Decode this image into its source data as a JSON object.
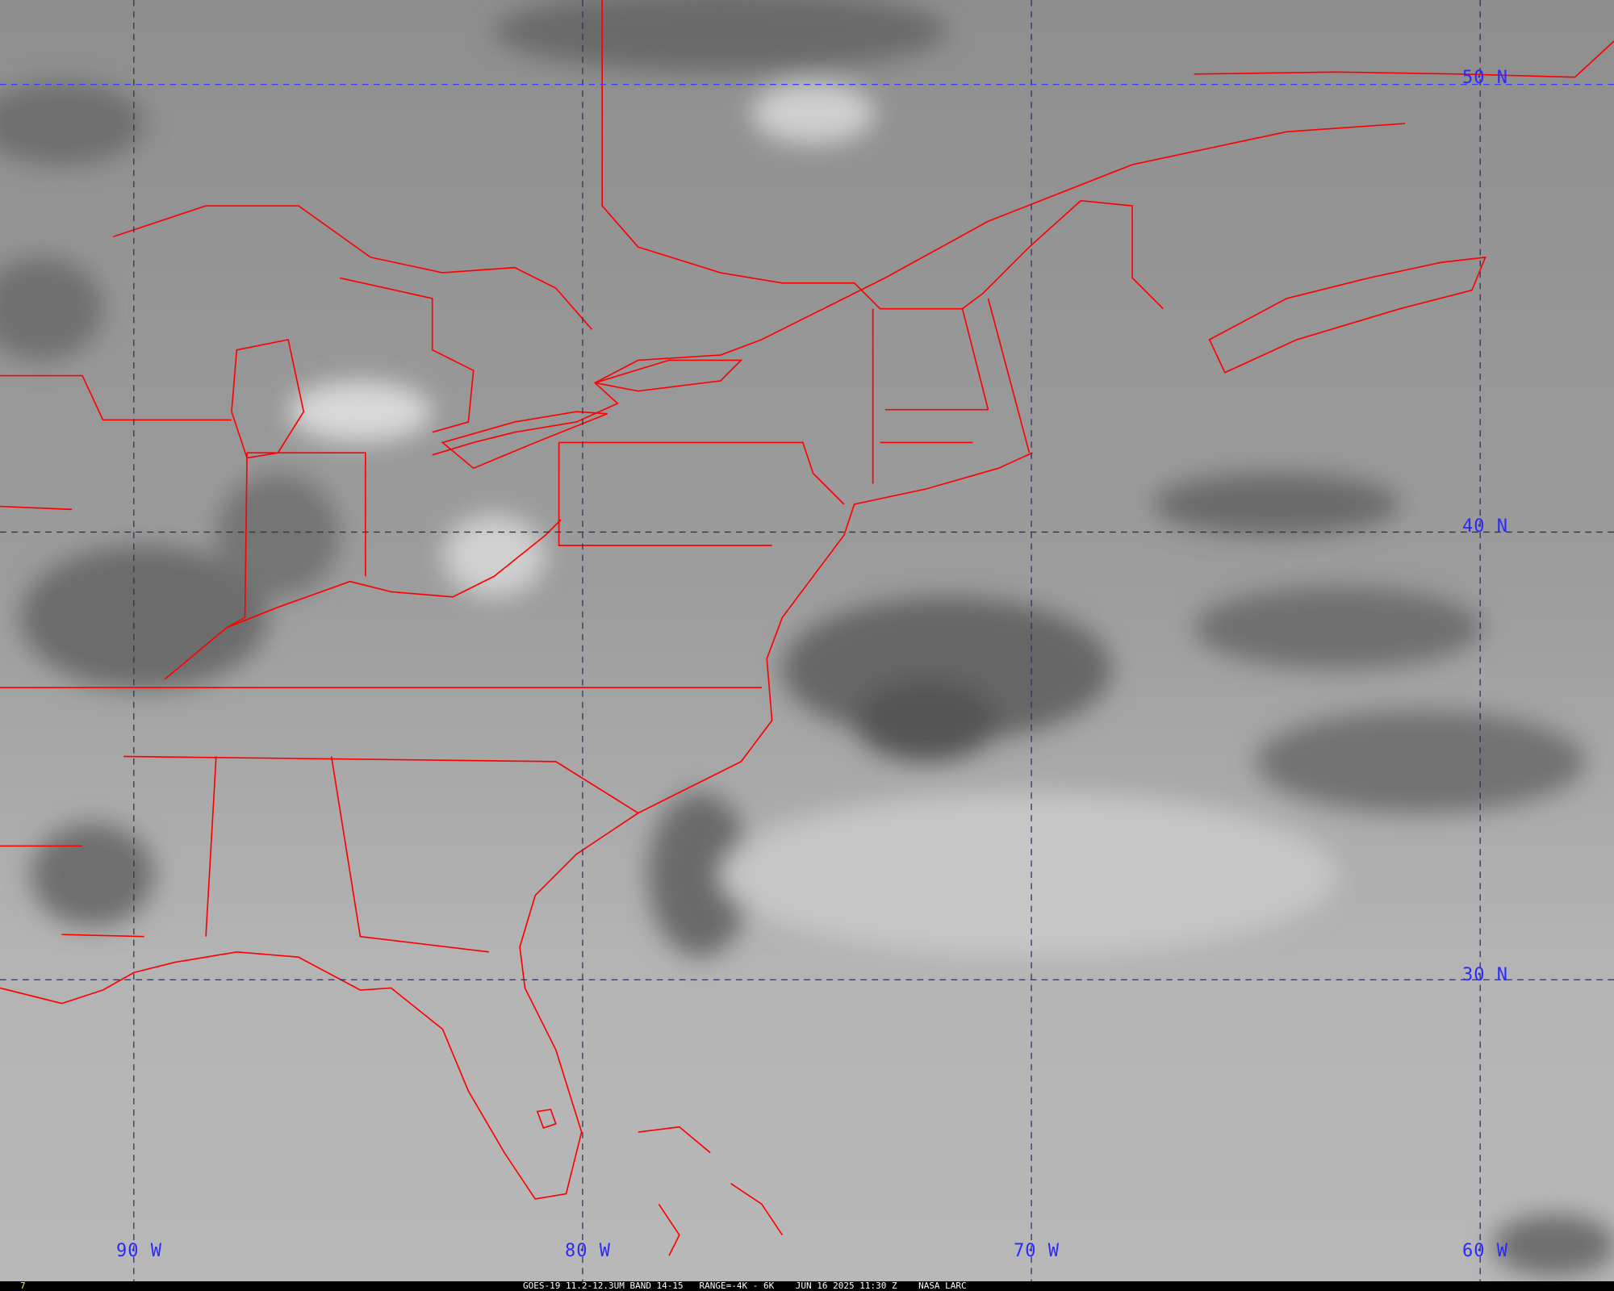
{
  "frame_number": "7",
  "caption": "GOES-19 11.2-12.3UM BAND 14-15   RANGE=-4K - 6K    JUN 16 2025 11:30 Z    NASA LARC",
  "grid": {
    "longitudes": [
      "90 W",
      "80 W",
      "70 W",
      "60 W"
    ],
    "latitudes": [
      "50 N",
      "40 N",
      "30 N"
    ]
  },
  "colors": {
    "boundaries": "#ff0000",
    "grid_labels": "#2a2aff",
    "frame_number": "#ffff00"
  }
}
